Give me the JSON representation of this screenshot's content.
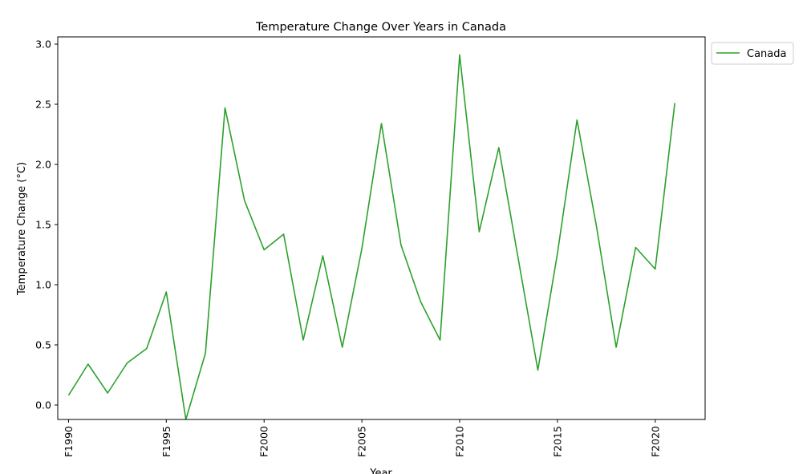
{
  "chart_data": {
    "type": "line",
    "title": "Temperature Change Over Years in Canada",
    "xlabel": "Year",
    "ylabel": "Temperature Change (°C)",
    "x": [
      1990,
      1991,
      1992,
      1993,
      1994,
      1995,
      1996,
      1997,
      1998,
      1999,
      2000,
      2001,
      2002,
      2003,
      2004,
      2005,
      2006,
      2007,
      2008,
      2009,
      2010,
      2011,
      2012,
      2013,
      2014,
      2015,
      2016,
      2017,
      2018,
      2019,
      2020,
      2021
    ],
    "x_ticks": [
      1990,
      1995,
      2000,
      2005,
      2010,
      2015,
      2020
    ],
    "x_tick_labels": [
      "F1990",
      "F1995",
      "F2000",
      "F2005",
      "F2010",
      "F2015",
      "F2020"
    ],
    "y_ticks": [
      0.0,
      0.5,
      1.0,
      1.5,
      2.0,
      2.5,
      3.0
    ],
    "y_tick_labels": [
      "0.0",
      "0.5",
      "1.0",
      "1.5",
      "2.0",
      "2.5",
      "3.0"
    ],
    "xlim": [
      1989.45,
      2022.55
    ],
    "ylim": [
      -0.12,
      3.06
    ],
    "grid": false,
    "legend_position": "outside top-right",
    "series": [
      {
        "name": "Canada",
        "color": "#2ca02c",
        "values": [
          0.08,
          0.34,
          0.1,
          0.35,
          0.47,
          0.94,
          -0.12,
          0.43,
          2.47,
          1.7,
          1.29,
          1.42,
          0.54,
          1.24,
          0.48,
          1.3,
          2.34,
          1.33,
          0.86,
          0.54,
          2.91,
          1.44,
          2.14,
          1.21,
          0.29,
          1.26,
          2.37,
          1.48,
          0.48,
          1.31,
          1.13,
          2.51
        ]
      }
    ]
  }
}
